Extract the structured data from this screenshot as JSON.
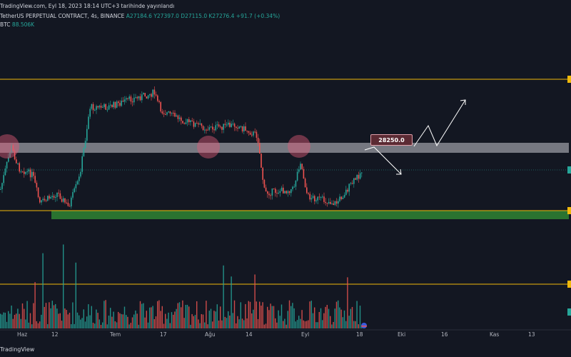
{
  "header": {
    "publish_line": "TradingView.com, Eyl 18, 2023 18:14 UTC+3 tarihinde yayınlandı",
    "symbol": "TetherUS PERPETUAL CONTRACT, 4s, BINANCE",
    "ohlc": "A27184.6  Y27397.0  D27115.0  K27276.4  +91.7 (+0.34%)"
  },
  "volume": {
    "label": "BTC",
    "value": "88.506K"
  },
  "annotation": {
    "price_label": "28250.0"
  },
  "x_axis": {
    "labels": [
      {
        "text": "Haz",
        "x": 30
      },
      {
        "text": "12",
        "x": 78
      },
      {
        "text": "Tem",
        "x": 160
      },
      {
        "text": "17",
        "x": 230
      },
      {
        "text": "Ağu",
        "x": 293
      },
      {
        "text": "14",
        "x": 350
      },
      {
        "text": "Eyl",
        "x": 428
      },
      {
        "text": "18",
        "x": 505
      },
      {
        "text": "Eki",
        "x": 563
      },
      {
        "text": "16",
        "x": 624
      },
      {
        "text": "Kas",
        "x": 692
      },
      {
        "text": "13",
        "x": 746
      }
    ]
  },
  "footer": {
    "brand": "TradingView"
  },
  "colors": {
    "bg": "#131722",
    "up": "#26a69a",
    "down": "#ef5350",
    "level_line": "#f0b90b",
    "resistance_zone": "#c8c8d0",
    "support_zone": "#2e7d32",
    "circle": "#e05a78"
  }
}
